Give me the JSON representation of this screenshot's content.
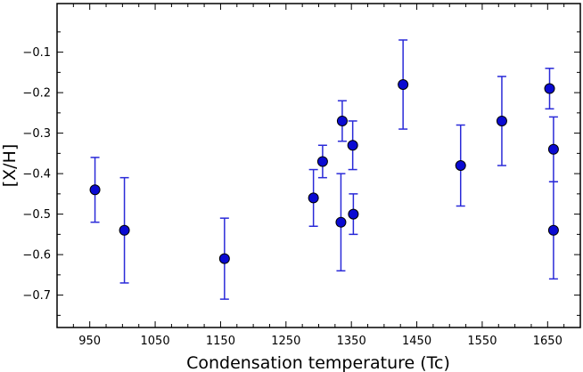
{
  "chart_data": {
    "type": "scatter",
    "title": "",
    "xlabel": "Condensation temperature (Tc)",
    "ylabel": "[X/H]",
    "xlim": [
      900,
      1700
    ],
    "ylim": [
      -0.78,
      0.02
    ],
    "xticks": [
      950,
      1050,
      1150,
      1250,
      1350,
      1450,
      1550,
      1650
    ],
    "xtick_labels": [
      "950",
      "1050",
      "1150",
      "1250",
      "1350",
      "1450",
      "1550",
      "1650"
    ],
    "yticks": [
      -0.7,
      -0.6,
      -0.5,
      -0.4,
      -0.3,
      -0.2,
      -0.1
    ],
    "ytick_labels": [
      "−0.7",
      "−0.6",
      "−0.5",
      "−0.4",
      "−0.3",
      "−0.2",
      "−0.1"
    ],
    "grid": false,
    "marker_color": "#0a0ad2",
    "errorbar_color": "#2a2ad8",
    "series": [
      {
        "points": [
          {
            "x": 958,
            "y": -0.44,
            "yerr": 0.08
          },
          {
            "x": 1003,
            "y": -0.54,
            "yerr": 0.13
          },
          {
            "x": 1156,
            "y": -0.61,
            "yerr": 0.1
          },
          {
            "x": 1292,
            "y": -0.46,
            "yerr": 0.07
          },
          {
            "x": 1306,
            "y": -0.37,
            "yerr": 0.04
          },
          {
            "x": 1334,
            "y": -0.52,
            "yerr": 0.12
          },
          {
            "x": 1336,
            "y": -0.27,
            "yerr": 0.05
          },
          {
            "x": 1352,
            "y": -0.33,
            "yerr": 0.06
          },
          {
            "x": 1353,
            "y": -0.5,
            "yerr": 0.05
          },
          {
            "x": 1429,
            "y": -0.18,
            "yerr": 0.11
          },
          {
            "x": 1517,
            "y": -0.38,
            "yerr": 0.1
          },
          {
            "x": 1580,
            "y": -0.27,
            "yerr": 0.11
          },
          {
            "x": 1653,
            "y": -0.19,
            "yerr": 0.05
          },
          {
            "x": 1659,
            "y": -0.34,
            "yerr": 0.08
          },
          {
            "x": 1659,
            "y": -0.54,
            "yerr": 0.12
          }
        ]
      }
    ]
  }
}
